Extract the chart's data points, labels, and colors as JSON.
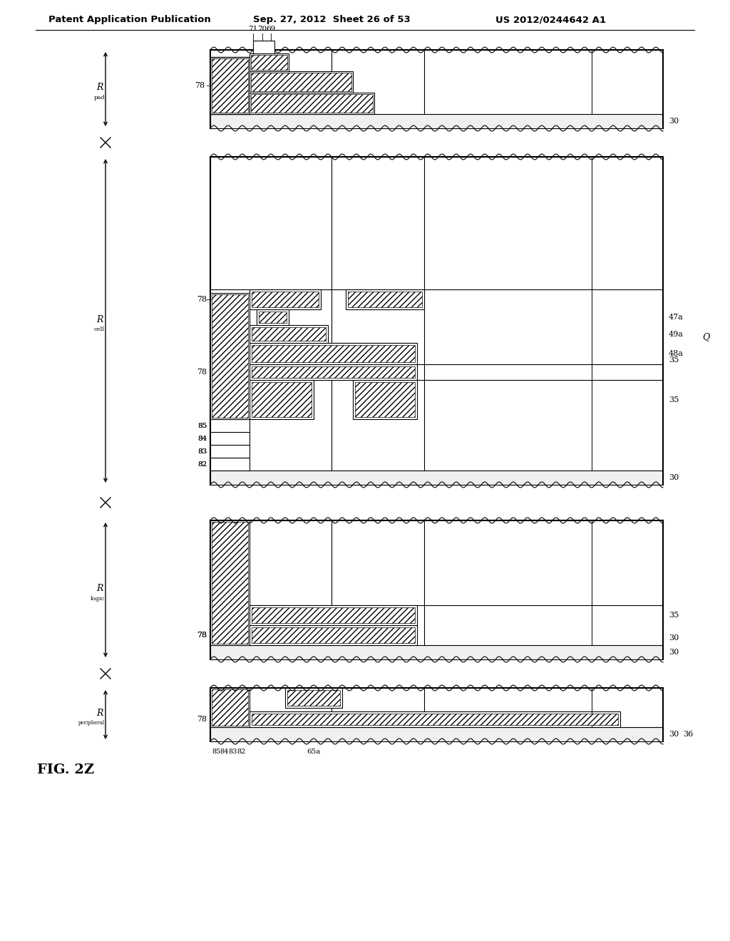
{
  "header_left": "Patent Application Publication",
  "header_mid": "Sep. 27, 2012  Sheet 26 of 53",
  "header_right": "US 2012/0244642 A1",
  "fig_label": "FIG. 2Z",
  "bg_color": "#ffffff"
}
